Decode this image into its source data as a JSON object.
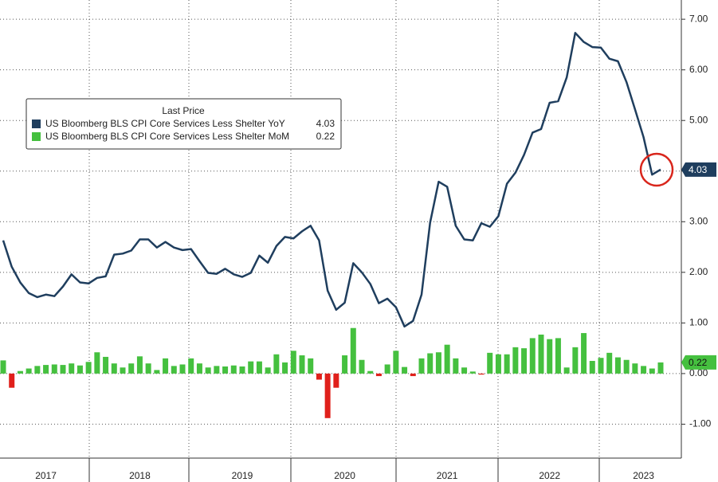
{
  "chart_data": {
    "type": "combo",
    "legend_title": "Last Price",
    "categories": [
      null,
      null,
      null,
      null,
      null,
      "2017",
      null,
      null,
      null,
      null,
      null,
      null,
      null,
      null,
      null,
      null,
      "2018",
      null,
      null,
      null,
      null,
      null,
      null,
      null,
      null,
      null,
      null,
      null,
      "2019",
      null,
      null,
      null,
      null,
      null,
      null,
      null,
      null,
      null,
      null,
      null,
      "2020",
      null,
      null,
      null,
      null,
      null,
      null,
      null,
      null,
      null,
      null,
      null,
      "2021",
      null,
      null,
      null,
      null,
      null,
      null,
      null,
      null,
      null,
      null,
      null,
      "2022",
      null,
      null,
      null,
      null,
      null,
      null,
      null,
      null,
      null,
      null,
      "2023",
      null,
      null
    ],
    "series": [
      {
        "name": "US Bloomberg BLS CPI Core Services Less Shelter YoY",
        "type": "line",
        "color": "#1f3e5e",
        "values": [
          2.63,
          2.11,
          1.8,
          1.59,
          1.51,
          1.56,
          1.53,
          1.72,
          1.96,
          1.8,
          1.78,
          1.89,
          1.92,
          2.35,
          2.37,
          2.43,
          2.65,
          2.65,
          2.49,
          2.6,
          2.49,
          2.44,
          2.46,
          2.22,
          1.99,
          1.97,
          2.07,
          1.96,
          1.91,
          1.99,
          2.33,
          2.19,
          2.52,
          2.7,
          2.67,
          2.81,
          2.92,
          2.63,
          1.64,
          1.26,
          1.4,
          2.18,
          2.0,
          1.77,
          1.39,
          1.48,
          1.31,
          0.93,
          1.04,
          1.56,
          2.98,
          3.79,
          3.69,
          2.92,
          2.65,
          2.63,
          2.97,
          2.9,
          3.11,
          3.75,
          3.97,
          4.32,
          4.76,
          4.83,
          5.35,
          5.38,
          5.85,
          6.73,
          6.55,
          6.45,
          6.44,
          6.22,
          6.17,
          5.76,
          5.22,
          4.67,
          3.93,
          4.03
        ]
      },
      {
        "name": "US Bloomberg BLS CPI Core Services Less Shelter MoM",
        "type": "bar",
        "color": "#45c03f",
        "negative_color": "#e0201b",
        "values": [
          0.26,
          -0.28,
          0.05,
          0.1,
          0.15,
          0.17,
          0.18,
          0.17,
          0.2,
          0.16,
          0.23,
          0.42,
          0.33,
          0.2,
          0.12,
          0.2,
          0.34,
          0.2,
          0.07,
          0.3,
          0.15,
          0.18,
          0.3,
          0.2,
          0.12,
          0.15,
          0.14,
          0.16,
          0.14,
          0.24,
          0.24,
          0.12,
          0.38,
          0.22,
          0.45,
          0.36,
          0.3,
          -0.12,
          -0.88,
          -0.28,
          0.36,
          0.9,
          0.27,
          0.05,
          -0.05,
          0.18,
          0.45,
          0.13,
          -0.05,
          0.3,
          0.4,
          0.42,
          0.57,
          0.3,
          0.12,
          0.04,
          -0.02,
          0.41,
          0.38,
          0.38,
          0.52,
          0.5,
          0.7,
          0.77,
          0.68,
          0.7,
          0.12,
          0.52,
          0.8,
          0.25,
          0.31,
          0.41,
          0.32,
          0.27,
          0.2,
          0.15,
          0.1,
          0.22
        ]
      }
    ],
    "ylim": [
      -1.67,
      7.38
    ],
    "yticks": [
      {
        "value": -1,
        "label": "-1.00"
      },
      {
        "value": 0,
        "label": "0.00"
      },
      {
        "value": 1,
        "label": "1.00"
      },
      {
        "value": 2,
        "label": "2.00"
      },
      {
        "value": 3,
        "label": "3.00"
      },
      {
        "value": 4,
        "label": "4.00"
      },
      {
        "value": 5,
        "label": "5.00"
      },
      {
        "value": 6,
        "label": "6.00"
      },
      {
        "value": 7,
        "label": "7.00"
      }
    ],
    "grid": true
  }
}
